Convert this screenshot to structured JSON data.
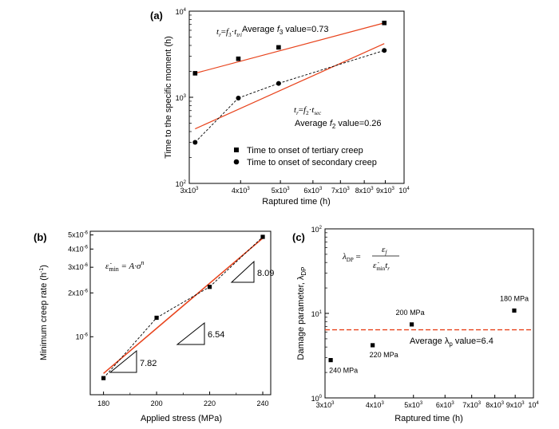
{
  "chart_data": [
    {
      "panel": "(a)",
      "type": "scatter",
      "xlabel": "Raptured time (h)",
      "ylabel": "Time to the specific moment (h)",
      "x_scale": "log",
      "y_scale": "log",
      "xlim": [
        3000,
        10000
      ],
      "ylim": [
        100,
        10000
      ],
      "x_ticks": [
        {
          "v": 3000,
          "m": "3x10",
          "e": "3"
        },
        {
          "v": 4000,
          "m": "4x10",
          "e": "3"
        },
        {
          "v": 5000,
          "m": "5x10",
          "e": "3"
        },
        {
          "v": 6000,
          "m": "6x10",
          "e": "3"
        },
        {
          "v": 7000,
          "m": "7x10",
          "e": "3"
        },
        {
          "v": 8000,
          "m": "8x10",
          "e": "3"
        },
        {
          "v": 9000,
          "m": "9x10",
          "e": "3"
        },
        {
          "v": 10000,
          "m": "10",
          "e": "4"
        }
      ],
      "y_ticks": [
        {
          "v": 100,
          "m": "10",
          "e": "2"
        },
        {
          "v": 1000,
          "m": "10",
          "e": "3"
        },
        {
          "v": 10000,
          "m": "10",
          "e": "4"
        }
      ],
      "series": [
        {
          "name": "Time to onset of  tertiary creep",
          "marker": "square",
          "x": [
            3100,
            3950,
            4950,
            8950
          ],
          "y": [
            1900,
            2800,
            3800,
            7300
          ]
        },
        {
          "name": "Time to onset of secondary creep",
          "marker": "circle",
          "x": [
            3100,
            3950,
            4950,
            8950
          ],
          "y": [
            300,
            980,
            1450,
            3500
          ]
        }
      ],
      "fit_lines": [
        {
          "x": [
            3100,
            8950
          ],
          "y": [
            1900,
            7300
          ],
          "color": "#e8431c"
        },
        {
          "x": [
            3100,
            8950
          ],
          "y": [
            430,
            4200
          ],
          "color": "#e8431c"
        }
      ],
      "annotations": {
        "f3_eq_main": "t",
        "f3_eq_sub1": "r",
        "f3_eq_eq": "=",
        "f3_eq_f": "f",
        "f3_eq_sub2": "3",
        "f3_eq_dot": "·",
        "f3_eq_t": "t",
        "f3_eq_sub3": "tri",
        "f3_avg_pre": "Average ",
        "f3_avg_f": "f",
        "f3_avg_sub": "3",
        "f3_avg_post": " value=0.73",
        "f2_eq_main": "t",
        "f2_eq_sub1": "r",
        "f2_eq_eq": "=",
        "f2_eq_f": "f",
        "f2_eq_sub2": "2",
        "f2_eq_dot": "·",
        "f2_eq_t": "t",
        "f2_eq_sub3": "sec",
        "f2_avg_pre": "Average ",
        "f2_avg_f": "f",
        "f2_avg_sub": "2",
        "f2_avg_post": " value=0.26"
      }
    },
    {
      "panel": "(b)",
      "type": "scatter",
      "xlabel": "Applied stress (MPa)",
      "ylabel_pre": "Minimum creep rate (h",
      "ylabel_sup": "-1",
      "ylabel_post": ")",
      "x_scale": "linear",
      "y_scale": "log",
      "xlim": [
        175,
        243
      ],
      "ylim": [
        4e-07,
        5.3e-06
      ],
      "x_ticks": [
        180,
        200,
        220,
        240
      ],
      "y_ticks": [
        {
          "v": 1e-06,
          "m": "10",
          "e": "-6"
        },
        {
          "v": 2e-06,
          "m": "2x10",
          "e": "-6"
        },
        {
          "v": 3e-06,
          "m": "3x10",
          "e": "-6"
        },
        {
          "v": 4e-06,
          "m": "4x10",
          "e": "-6"
        },
        {
          "v": 5e-06,
          "m": "5x10",
          "e": "-6"
        }
      ],
      "points": {
        "x": [
          180,
          200,
          220,
          240
        ],
        "y": [
          5.2e-07,
          1.35e-06,
          2.2e-06,
          4.85e-06
        ]
      },
      "fit_line": {
        "x": [
          180,
          240
        ],
        "y": [
          5.6e-07,
          4.75e-06
        ],
        "color": "#e8431c"
      },
      "slopes": [
        "7.82",
        "6.54",
        "8.09"
      ],
      "equation": {
        "lhs": "ε̇",
        "sub": "min",
        "rhs": " = A·σ",
        "sup": "n"
      }
    },
    {
      "panel": "(c)",
      "type": "scatter",
      "xlabel": "Raptured time (h)",
      "ylabel_pre": "Damage parameter, λ",
      "ylabel_sub": "DP",
      "x_scale": "log",
      "y_scale": "log",
      "xlim": [
        3000,
        10000
      ],
      "ylim": [
        1,
        100
      ],
      "x_ticks": [
        {
          "v": 3000,
          "m": "3x10",
          "e": "3"
        },
        {
          "v": 4000,
          "m": "4x10",
          "e": "3"
        },
        {
          "v": 5000,
          "m": "5x10",
          "e": "3"
        },
        {
          "v": 6000,
          "m": "6x10",
          "e": "3"
        },
        {
          "v": 7000,
          "m": "7x10",
          "e": "3"
        },
        {
          "v": 8000,
          "m": "8x10",
          "e": "3"
        },
        {
          "v": 9000,
          "m": "9x10",
          "e": "3"
        },
        {
          "v": 10000,
          "m": "10",
          "e": "4"
        }
      ],
      "y_ticks": [
        {
          "v": 1,
          "m": "10",
          "e": "0"
        },
        {
          "v": 10,
          "m": "10",
          "e": "1"
        },
        {
          "v": 100,
          "m": "10",
          "e": "2"
        }
      ],
      "points": {
        "x": [
          3100,
          3950,
          4950,
          8950
        ],
        "y": [
          2.8,
          4.2,
          7.4,
          10.8
        ]
      },
      "point_labels": [
        "240 MPa",
        "220 MPa",
        "200 MPa",
        "180 MPa"
      ],
      "average_line": {
        "y": 6.4,
        "color": "#e8431c"
      },
      "avg_text": {
        "pre": "Average λ",
        "sub": "p",
        "post": " value=6.4"
      },
      "equation": {
        "lhs": "λ",
        "lhs_sub": "DP",
        "eq": " = ",
        "num": "ε",
        "num_sub": "f",
        "den": "ε̇",
        "den_sub": "min",
        "den_t": "t",
        "den_t_sub": "r"
      }
    }
  ]
}
